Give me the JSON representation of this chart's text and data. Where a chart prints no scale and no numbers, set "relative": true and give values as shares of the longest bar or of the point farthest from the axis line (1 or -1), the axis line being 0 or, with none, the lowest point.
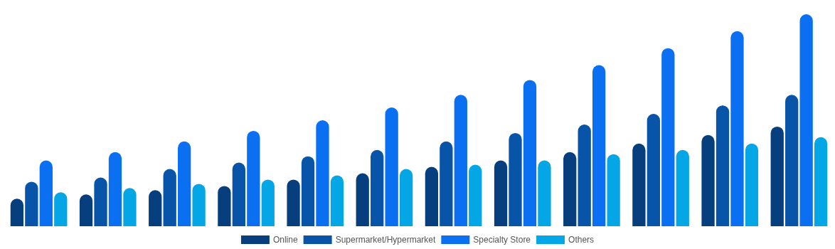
{
  "chart_data": {
    "type": "bar",
    "relative": true,
    "legend": "bottom",
    "categories": [
      null,
      null,
      null,
      null,
      null,
      null,
      null,
      null,
      null,
      null,
      null,
      null
    ],
    "series": [
      {
        "name": "Online",
        "color": "#073f7e",
        "values": [
          0.13,
          0.15,
          0.17,
          0.19,
          0.22,
          0.25,
          0.28,
          0.31,
          0.35,
          0.39,
          0.43,
          0.47
        ]
      },
      {
        "name": "Supermarket/Hypermarket",
        "color": "#0754a8",
        "values": [
          0.21,
          0.23,
          0.27,
          0.3,
          0.33,
          0.36,
          0.4,
          0.44,
          0.48,
          0.53,
          0.57,
          0.62
        ]
      },
      {
        "name": "Specialty Store",
        "color": "#0a6ff0",
        "values": [
          0.31,
          0.35,
          0.4,
          0.45,
          0.5,
          0.56,
          0.62,
          0.69,
          0.76,
          0.84,
          0.92,
          1
        ]
      },
      {
        "name": "Others",
        "color": "#05a6e6",
        "values": [
          0.16,
          0.18,
          0.2,
          0.22,
          0.24,
          0.27,
          0.29,
          0.31,
          0.34,
          0.36,
          0.39,
          0.42
        ]
      }
    ]
  }
}
